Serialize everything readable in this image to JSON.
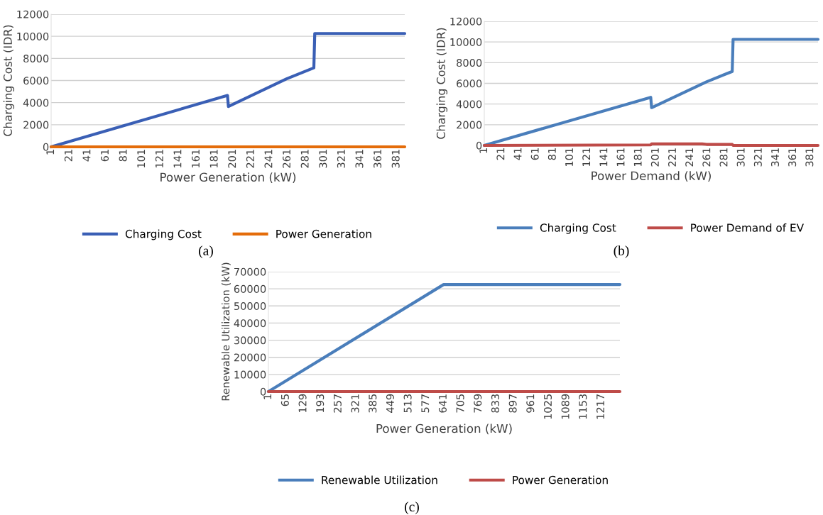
{
  "chart_data": [
    {
      "type": "line",
      "xlabel": "Power Generation (kW)",
      "ylabel": "Charging Cost (IDR)",
      "annotations": [
        "(a)"
      ],
      "xlim": [
        1,
        390
      ],
      "xticks": [
        1,
        21,
        41,
        61,
        81,
        101,
        121,
        141,
        161,
        181,
        201,
        221,
        241,
        261,
        281,
        301,
        321,
        341,
        361,
        381
      ],
      "ylim": [
        0,
        12000
      ],
      "yticks": [
        0,
        2000,
        4000,
        6000,
        8000,
        10000,
        12000
      ],
      "grid": "y",
      "legend": "bottom",
      "series": [
        {
          "name": "Charging Cost",
          "color": "#3a5fb5",
          "x": [
            1,
            195,
            196,
            260,
            290,
            291,
            390
          ],
          "values": [
            0,
            4650,
            3650,
            6150,
            7150,
            10250,
            10250
          ]
        },
        {
          "name": "Power Generation",
          "color": "#e46c0a",
          "x": [
            1,
            390
          ],
          "values": [
            0,
            0
          ]
        }
      ]
    },
    {
      "type": "line",
      "xlabel": "Power Demand (kW)",
      "ylabel": "Charging Cost (IDR)",
      "annotations": [
        "(b)"
      ],
      "xlim": [
        1,
        390
      ],
      "xticks": [
        1,
        21,
        41,
        61,
        81,
        101,
        121,
        141,
        161,
        181,
        201,
        221,
        241,
        261,
        281,
        301,
        321,
        341,
        361,
        381
      ],
      "ylim": [
        0,
        12000
      ],
      "yticks": [
        0,
        2000,
        4000,
        6000,
        8000,
        10000,
        12000
      ],
      "grid": "y",
      "legend": "bottom",
      "series": [
        {
          "name": "Charging Cost",
          "color": "#4a7ebb",
          "x": [
            1,
            195,
            196,
            260,
            290,
            291,
            390
          ],
          "values": [
            0,
            4650,
            3650,
            6150,
            7150,
            10250,
            10250
          ]
        },
        {
          "name": "Power Demand of EV",
          "color": "#be4b48",
          "x": [
            1,
            195,
            196,
            255,
            260,
            290,
            291,
            390
          ],
          "values": [
            0,
            50,
            150,
            150,
            100,
            100,
            0,
            0
          ]
        }
      ]
    },
    {
      "type": "line",
      "xlabel": "Power Generation (kW)",
      "ylabel": "Renewable Utilization (kW)",
      "annotations": [
        "(c)"
      ],
      "xlim": [
        1,
        1285
      ],
      "xticks": [
        1,
        65,
        129,
        193,
        257,
        321,
        385,
        449,
        513,
        577,
        641,
        705,
        769,
        833,
        897,
        961,
        1025,
        1089,
        1153,
        1217
      ],
      "ylim": [
        0,
        70000
      ],
      "yticks": [
        0,
        10000,
        20000,
        30000,
        40000,
        50000,
        60000,
        70000
      ],
      "grid": "y",
      "legend": "bottom",
      "series": [
        {
          "name": "Renewable Utilization",
          "color": "#4a7ebb",
          "x": [
            1,
            641,
            1285
          ],
          "values": [
            0,
            62500,
            62500
          ]
        },
        {
          "name": "Power Generation",
          "color": "#be4b48",
          "x": [
            1,
            1285
          ],
          "values": [
            0,
            0
          ]
        }
      ]
    }
  ]
}
